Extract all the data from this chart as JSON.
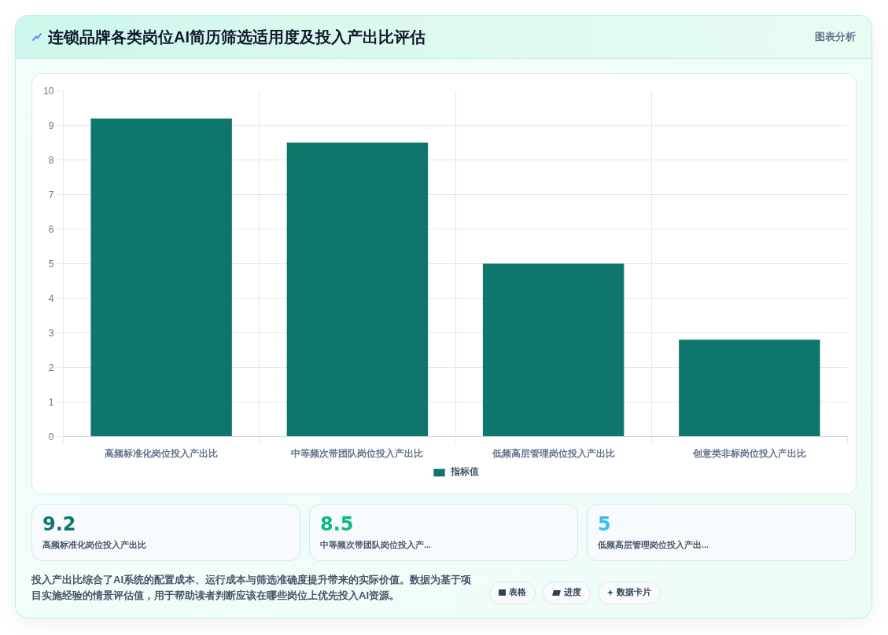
{
  "chart_data": [
    {
      "type": "bar",
      "title": "连锁品牌各类岗位AI简历筛选适用度及投入产出比评估",
      "categories": [
        "高频标准化岗位投入产出比",
        "中等频次带团队岗位投入产出比",
        "低频高层管理岗位投入产出比",
        "创意类非标岗位投入产出比"
      ],
      "series": [
        {
          "name": "指标值",
          "color": "#0f766e",
          "values": [
            9.2,
            8.5,
            5,
            2.8
          ]
        }
      ],
      "ylim": [
        0,
        10
      ],
      "yticks": [
        0,
        1,
        2,
        3,
        4,
        5,
        6,
        7,
        8,
        9,
        10
      ],
      "grid": true,
      "legend": "bottom",
      "annotations": [
        "图表分析",
        "投入产出比综合了AI系统的配置成本、运行成本与筛选准确度提升带来的实际价值。数据为基于项目实施经验的情景评估值，用于帮助读者判断应该在哪些岗位上优先投入AI资源。",
        "表格",
        "进度",
        "数据卡片"
      ]
    },
    {
      "type": "other",
      "annotations": [
        "9.2",
        "高频标准化岗位投入产出比",
        "8.5",
        "中等频次带团队岗位投入产...",
        "5",
        "低频高层管理岗位投入产出..."
      ]
    }
  ]
}
